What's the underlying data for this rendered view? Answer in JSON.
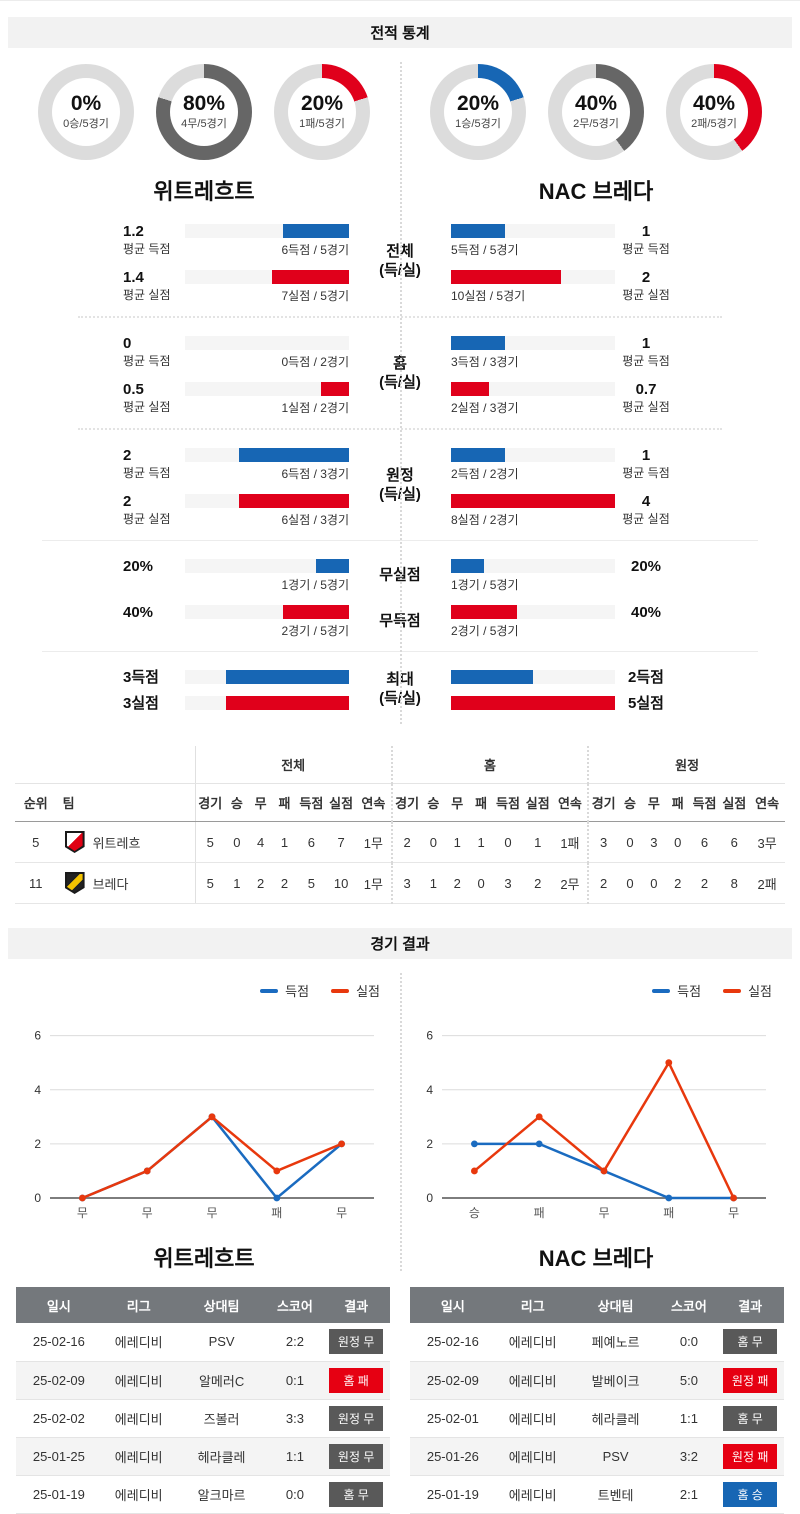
{
  "header": {
    "stats_title": "전적 통계",
    "results_title": "경기 결과"
  },
  "teams": {
    "home": {
      "name": "위트레흐트"
    },
    "away": {
      "name": "NAC 브레다"
    }
  },
  "colors": {
    "bar_blue": "#1766b4",
    "bar_red": "#e0001b",
    "draw_gray": "#666666",
    "badge_gray": "#595959",
    "badge_red": "#e60012",
    "badge_blue": "#1766b4",
    "chart_blue": "#1a6bc0",
    "chart_red": "#e8380d"
  },
  "donuts": {
    "home": [
      {
        "pct_label": "0%",
        "sub": "0승/5경기",
        "value": 0,
        "color": "#1766b4"
      },
      {
        "pct_label": "80%",
        "sub": "4무/5경기",
        "value": 80,
        "color": "#666666"
      },
      {
        "pct_label": "20%",
        "sub": "1패/5경기",
        "value": 20,
        "color": "#e0001b"
      }
    ],
    "away": [
      {
        "pct_label": "20%",
        "sub": "1승/5경기",
        "value": 20,
        "color": "#1766b4"
      },
      {
        "pct_label": "40%",
        "sub": "2무/5경기",
        "value": 40,
        "color": "#666666"
      },
      {
        "pct_label": "40%",
        "sub": "2패/5경기",
        "value": 40,
        "color": "#e0001b"
      }
    ]
  },
  "comparison": {
    "overall": {
      "label": "전체",
      "label2": "(득/실)",
      "home_goal": {
        "avg": "1.2",
        "avg_label": "평균 득점",
        "caption": "6득점 / 5경기",
        "pct": 40
      },
      "home_concede": {
        "avg": "1.4",
        "avg_label": "평균 실점",
        "caption": "7실점 / 5경기",
        "pct": 47
      },
      "away_goal": {
        "avg": "1",
        "avg_label": "평균 득점",
        "caption": "5득점 / 5경기",
        "pct": 33
      },
      "away_concede": {
        "avg": "2",
        "avg_label": "평균 실점",
        "caption": "10실점 / 5경기",
        "pct": 67
      }
    },
    "home_section": {
      "label": "홈",
      "label2": "(득/실)",
      "home_goal": {
        "avg": "0",
        "avg_label": "평균 득점",
        "caption": "0득점 / 2경기",
        "pct": 0
      },
      "home_concede": {
        "avg": "0.5",
        "avg_label": "평균 실점",
        "caption": "1실점 / 2경기",
        "pct": 17
      },
      "away_goal": {
        "avg": "1",
        "avg_label": "평균 득점",
        "caption": "3득점 / 3경기",
        "pct": 33
      },
      "away_concede": {
        "avg": "0.7",
        "avg_label": "평균 실점",
        "caption": "2실점 / 3경기",
        "pct": 23
      }
    },
    "away_section": {
      "label": "원정",
      "label2": "(득/실)",
      "home_goal": {
        "avg": "2",
        "avg_label": "평균 득점",
        "caption": "6득점 / 3경기",
        "pct": 67
      },
      "home_concede": {
        "avg": "2",
        "avg_label": "평균 실점",
        "caption": "6실점 / 3경기",
        "pct": 67
      },
      "away_goal": {
        "avg": "1",
        "avg_label": "평균 득점",
        "caption": "2득점 / 2경기",
        "pct": 33
      },
      "away_concede": {
        "avg": "4",
        "avg_label": "평균 실점",
        "caption": "8실점 / 2경기",
        "pct": 100
      }
    },
    "clean_sheet": {
      "label": "무실점",
      "home": {
        "pct_text": "20%",
        "caption": "1경기 / 5경기",
        "pct": 20
      },
      "away": {
        "pct_text": "20%",
        "caption": "1경기 / 5경기",
        "pct": 20
      }
    },
    "no_goal": {
      "label": "무득점",
      "home": {
        "pct_text": "40%",
        "caption": "2경기 / 5경기",
        "pct": 40
      },
      "away": {
        "pct_text": "40%",
        "caption": "2경기 / 5경기",
        "pct": 40
      }
    },
    "max": {
      "label": "최대",
      "label2": "(득/실)",
      "home_goal": {
        "text": "3득점",
        "pct": 75
      },
      "home_concede": {
        "text": "3실점",
        "pct": 75
      },
      "away_goal": {
        "text": "2득점",
        "pct": 50
      },
      "away_concede": {
        "text": "5실점",
        "pct": 100
      }
    }
  },
  "ranking_table": {
    "col_rank": "순위",
    "col_team": "팀",
    "group_headers": [
      "전체",
      "홈",
      "원정"
    ],
    "sub_headers": [
      "경기",
      "승",
      "무",
      "패",
      "득점",
      "실점",
      "연속"
    ],
    "rows": [
      {
        "rank": "5",
        "team": "위트레흐",
        "overall": [
          "5",
          "0",
          "4",
          "1",
          "6",
          "7",
          "1무"
        ],
        "home": [
          "2",
          "0",
          "1",
          "1",
          "0",
          "1",
          "1패"
        ],
        "away": [
          "3",
          "0",
          "3",
          "0",
          "6",
          "6",
          "3무"
        ]
      },
      {
        "rank": "11",
        "team": "브레다",
        "overall": [
          "5",
          "1",
          "2",
          "2",
          "5",
          "10",
          "1무"
        ],
        "home": [
          "3",
          "1",
          "2",
          "0",
          "3",
          "2",
          "2무"
        ],
        "away": [
          "2",
          "0",
          "0",
          "2",
          "2",
          "8",
          "2패"
        ]
      }
    ]
  },
  "chart_data": [
    {
      "type": "line",
      "team": "위트레흐트",
      "x": [
        "무",
        "무",
        "무",
        "패",
        "무"
      ],
      "series": [
        {
          "name": "득점",
          "color": "#1a6bc0",
          "values": [
            0,
            1,
            3,
            0,
            2
          ]
        },
        {
          "name": "실점",
          "color": "#e8380d",
          "values": [
            0,
            1,
            3,
            1,
            2
          ]
        }
      ],
      "ylim": [
        0,
        6
      ],
      "yticks": [
        0,
        2,
        4,
        6
      ],
      "grid": true,
      "legend_position": "top-right"
    },
    {
      "type": "line",
      "team": "NAC 브레다",
      "x": [
        "승",
        "패",
        "무",
        "패",
        "무"
      ],
      "series": [
        {
          "name": "득점",
          "color": "#1a6bc0",
          "values": [
            2,
            2,
            1,
            0,
            0
          ]
        },
        {
          "name": "실점",
          "color": "#e8380d",
          "values": [
            1,
            3,
            1,
            5,
            0
          ]
        }
      ],
      "ylim": [
        0,
        6
      ],
      "yticks": [
        0,
        2,
        4,
        6
      ],
      "grid": true,
      "legend_position": "top-right"
    }
  ],
  "matches": {
    "headers": [
      "일시",
      "리그",
      "상대팀",
      "스코어",
      "결과"
    ],
    "home": {
      "rows": [
        {
          "date": "25-02-16",
          "league": "에레디비",
          "opponent": "PSV",
          "score": "2:2",
          "result": "원정 무",
          "result_type": "draw"
        },
        {
          "date": "25-02-09",
          "league": "에레디비",
          "opponent": "알메러C",
          "score": "0:1",
          "result": "홈 패",
          "result_type": "loss"
        },
        {
          "date": "25-02-02",
          "league": "에레디비",
          "opponent": "즈볼러",
          "score": "3:3",
          "result": "원정 무",
          "result_type": "draw"
        },
        {
          "date": "25-01-25",
          "league": "에레디비",
          "opponent": "헤라클레",
          "score": "1:1",
          "result": "원정 무",
          "result_type": "draw"
        },
        {
          "date": "25-01-19",
          "league": "에레디비",
          "opponent": "알크마르",
          "score": "0:0",
          "result": "홈 무",
          "result_type": "draw"
        }
      ]
    },
    "away": {
      "rows": [
        {
          "date": "25-02-16",
          "league": "에레디비",
          "opponent": "페예노르",
          "score": "0:0",
          "result": "홈 무",
          "result_type": "draw"
        },
        {
          "date": "25-02-09",
          "league": "에레디비",
          "opponent": "발베이크",
          "score": "5:0",
          "result": "원정 패",
          "result_type": "loss"
        },
        {
          "date": "25-02-01",
          "league": "에레디비",
          "opponent": "헤라클레",
          "score": "1:1",
          "result": "홈 무",
          "result_type": "draw"
        },
        {
          "date": "25-01-26",
          "league": "에레디비",
          "opponent": "PSV",
          "score": "3:2",
          "result": "원정 패",
          "result_type": "loss"
        },
        {
          "date": "25-01-19",
          "league": "에레디비",
          "opponent": "트벤테",
          "score": "2:1",
          "result": "홈 승",
          "result_type": "win"
        }
      ]
    }
  }
}
